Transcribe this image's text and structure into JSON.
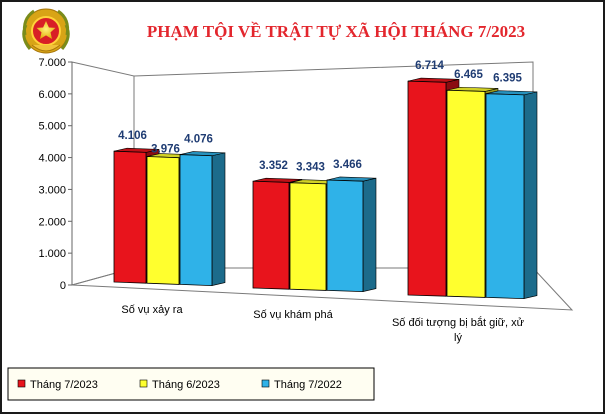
{
  "chart_data": {
    "type": "bar",
    "title": "PHẠM TỘI VỀ TRẬT TỰ XÃ HỘI THÁNG 7/2023",
    "categories": [
      "Số vụ xảy ra",
      "Số vụ khám phá",
      "Số đối tượng bị bắt giữ, xử lý"
    ],
    "category_lines": [
      [
        "Số vụ xảy ra"
      ],
      [
        "Số vụ khám phá"
      ],
      [
        "Số đối tượng bị bắt giữ, xử",
        "lý"
      ]
    ],
    "series": [
      {
        "name": "Tháng 7/2023",
        "values": [
          4106,
          3352,
          6714
        ],
        "labels": [
          "4.106",
          "3.352",
          "6.714"
        ],
        "color": "#e8141c"
      },
      {
        "name": "Tháng 6/2023",
        "values": [
          3976,
          3343,
          6465
        ],
        "labels": [
          "3.976",
          "3.343",
          "6.465"
        ],
        "color": "#ffff2e"
      },
      {
        "name": "Tháng 7/2022",
        "values": [
          4076,
          3466,
          6395
        ],
        "labels": [
          "4.076",
          "3.466",
          "6.395"
        ],
        "color": "#2fb2e8"
      }
    ],
    "yticks": [
      "0",
      "1.000",
      "2.000",
      "3.000",
      "4.000",
      "5.000",
      "6.000",
      "7.000"
    ],
    "ylim": [
      0,
      7000
    ],
    "grid": false,
    "legend_position": "bottom-left",
    "style": "3d-perspective",
    "emblem": "police-emblem-icon"
  }
}
